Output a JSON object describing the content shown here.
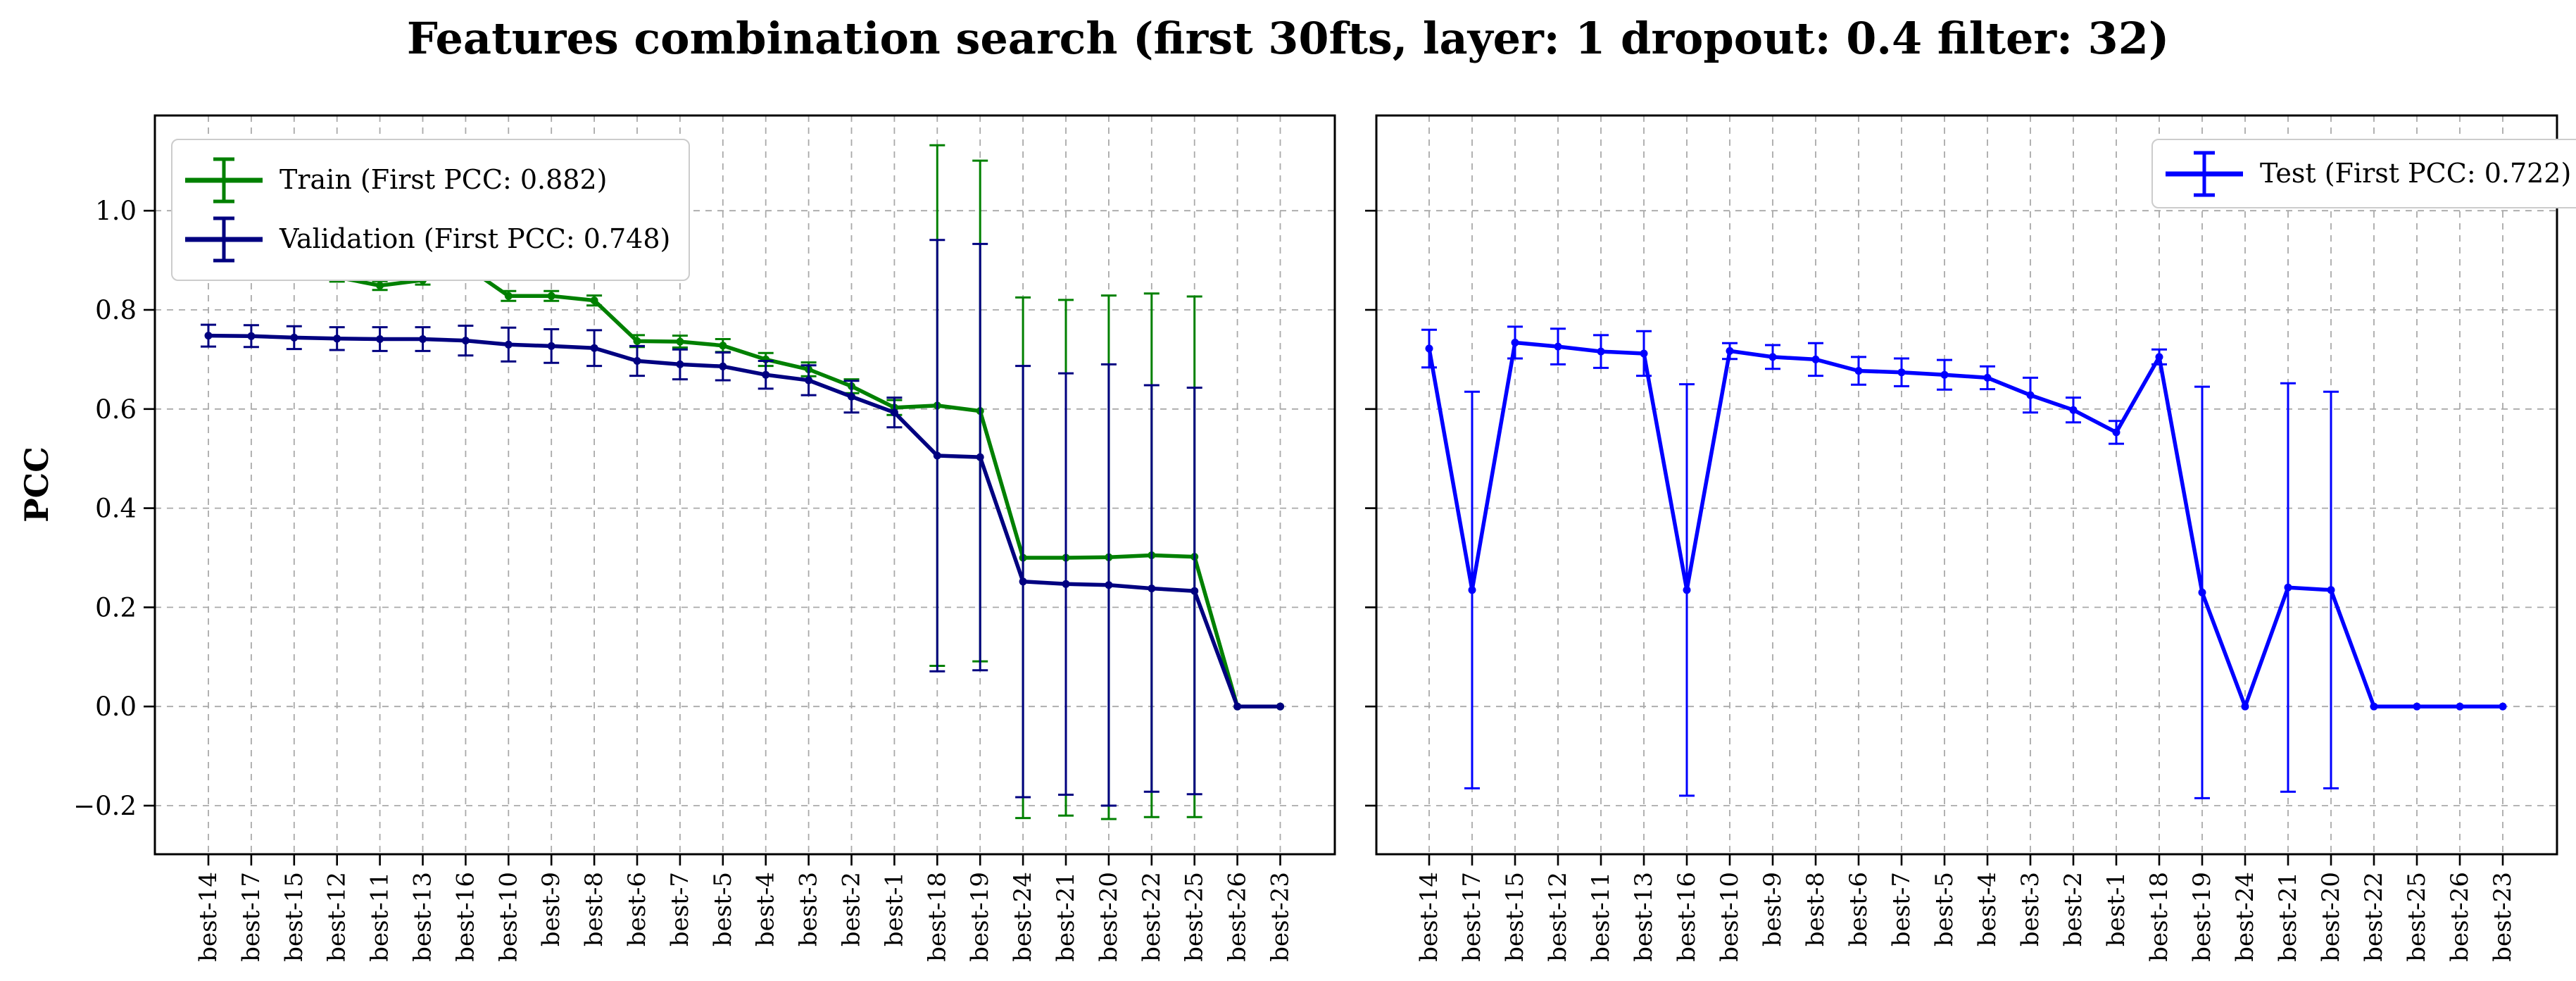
{
  "figure": {
    "background": "#ffffff",
    "grid_color": "#a9a9a9",
    "axis_color": "#000000"
  },
  "chart_data": {
    "type": "line",
    "title": "Features combination search (first 30fts, layer: 1 dropout: 0.4 filter: 32)",
    "xlabel": "",
    "ylabel": "PCC",
    "grid": true,
    "ylim": [
      -0.298,
      1.192
    ],
    "yticks": [
      {
        "v": 1.0,
        "label": "1.0"
      },
      {
        "v": 0.8,
        "label": "0.8"
      },
      {
        "v": 0.6,
        "label": "0.6"
      },
      {
        "v": 0.4,
        "label": "0.4"
      },
      {
        "v": 0.2,
        "label": "0.2"
      },
      {
        "v": 0.0,
        "label": "0.0"
      },
      {
        "v": -0.2,
        "label": "−0.2"
      }
    ],
    "categories": [
      "best-14",
      "best-17",
      "best-15",
      "best-12",
      "best-11",
      "best-13",
      "best-16",
      "best-10",
      "best-9",
      "best-8",
      "best-6",
      "best-7",
      "best-5",
      "best-4",
      "best-3",
      "best-2",
      "best-1",
      "best-18",
      "best-19",
      "best-24",
      "best-21",
      "best-20",
      "best-22",
      "best-25",
      "best-26",
      "best-23"
    ],
    "subplots": [
      {
        "name": "train-validation-panel",
        "legend_position": "upper-left",
        "series": [
          {
            "name": "Train (First PCC: 0.882)",
            "color": "#008000",
            "values": [
              0.882,
              0.895,
              0.898,
              0.866,
              0.849,
              0.86,
              0.888,
              0.828,
              0.828,
              0.819,
              0.737,
              0.736,
              0.728,
              0.7,
              0.68,
              0.646,
              0.603,
              0.607,
              0.596,
              0.3,
              0.3,
              0.301,
              0.305,
              0.302,
              0.0,
              0.0
            ],
            "errors": [
              0.008,
              0.008,
              0.008,
              0.009,
              0.009,
              0.009,
              0.008,
              0.01,
              0.01,
              0.01,
              0.012,
              0.012,
              0.013,
              0.013,
              0.014,
              0.014,
              0.015,
              0.525,
              0.505,
              0.525,
              0.52,
              0.528,
              0.528,
              0.525,
              0,
              0
            ]
          },
          {
            "name": "Validation (First PCC: 0.748)",
            "color": "#000080",
            "values": [
              0.748,
              0.747,
              0.744,
              0.742,
              0.741,
              0.741,
              0.738,
              0.73,
              0.727,
              0.723,
              0.697,
              0.69,
              0.686,
              0.669,
              0.658,
              0.625,
              0.593,
              0.506,
              0.503,
              0.252,
              0.247,
              0.245,
              0.238,
              0.233,
              0.0,
              0.0
            ],
            "errors": [
              0.022,
              0.022,
              0.023,
              0.023,
              0.024,
              0.024,
              0.03,
              0.034,
              0.034,
              0.036,
              0.03,
              0.03,
              0.028,
              0.028,
              0.03,
              0.032,
              0.03,
              0.435,
              0.43,
              0.435,
              0.425,
              0.445,
              0.41,
              0.41,
              0,
              0
            ]
          }
        ]
      },
      {
        "name": "test-panel",
        "legend_position": "upper-right",
        "series": [
          {
            "name": "Test (First PCC: 0.722)",
            "color": "#0000ff",
            "values": [
              0.722,
              0.235,
              0.734,
              0.726,
              0.716,
              0.712,
              0.235,
              0.717,
              0.705,
              0.7,
              0.677,
              0.674,
              0.669,
              0.663,
              0.628,
              0.598,
              0.553,
              0.705,
              0.23,
              0.0,
              0.24,
              0.235,
              0.0,
              0.0,
              0.0,
              0.0
            ],
            "errors": [
              0.038,
              0.4,
              0.032,
              0.036,
              0.033,
              0.045,
              0.415,
              0.016,
              0.024,
              0.033,
              0.028,
              0.028,
              0.03,
              0.023,
              0.035,
              0.025,
              0.023,
              0.015,
              0.415,
              0,
              0.412,
              0.4,
              0,
              0,
              0,
              0
            ]
          }
        ]
      }
    ]
  }
}
